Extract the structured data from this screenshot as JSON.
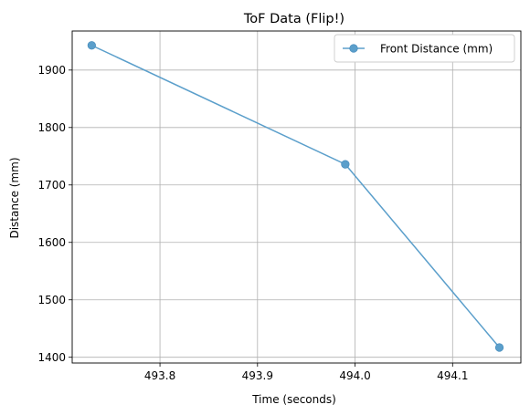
{
  "chart_data": {
    "type": "line",
    "title": "ToF Data (Flip!)",
    "xlabel": "Time (seconds)",
    "ylabel": "Distance (mm)",
    "xlim": [
      493.71,
      494.17
    ],
    "ylim": [
      1390,
      1968
    ],
    "x_ticks": [
      493.8,
      493.9,
      494.0,
      494.1
    ],
    "x_tick_labels": [
      "493.8",
      "493.9",
      "494.0",
      "494.1"
    ],
    "y_ticks": [
      1400,
      1500,
      1600,
      1700,
      1800,
      1900
    ],
    "y_tick_labels": [
      "1400",
      "1500",
      "1600",
      "1700",
      "1800",
      "1900"
    ],
    "grid": true,
    "legend_position": "top-right",
    "series": [
      {
        "name": "Front Distance (mm)",
        "color": "#5b9fcb",
        "marker": "circle",
        "x": [
          493.73,
          493.99,
          494.148
        ],
        "y": [
          1943,
          1736,
          1417
        ]
      }
    ]
  }
}
